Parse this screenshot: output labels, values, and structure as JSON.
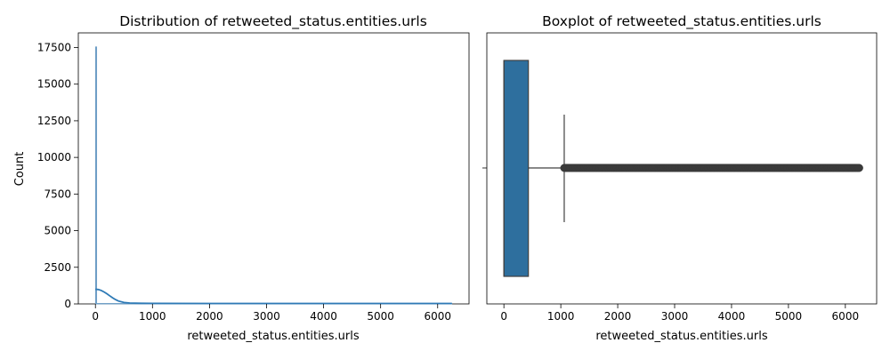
{
  "chart_data": [
    {
      "type": "histogram",
      "title": "Distribution of retweeted_status.entities.urls",
      "xlabel": "retweeted_status.entities.urls",
      "ylabel": "Count",
      "xlim": [
        -300,
        6550
      ],
      "ylim": [
        0,
        18500
      ],
      "x_ticks": [
        0,
        1000,
        2000,
        3000,
        4000,
        5000,
        6000
      ],
      "y_ticks": [
        0,
        2500,
        5000,
        7500,
        10000,
        12500,
        15000,
        17500
      ],
      "bars": [
        {
          "x0": 0,
          "x1": 12,
          "count": 17550
        },
        {
          "x0": 12,
          "x1": 6250,
          "count": 40
        }
      ],
      "kde": {
        "x": [
          0,
          50,
          100,
          150,
          200,
          250,
          300,
          350,
          400,
          500,
          600,
          800,
          1000,
          2000,
          3000,
          4000,
          5000,
          6000,
          6250
        ],
        "y": [
          1000,
          980,
          920,
          820,
          700,
          560,
          420,
          300,
          200,
          100,
          60,
          40,
          35,
          30,
          30,
          30,
          30,
          30,
          30
        ]
      },
      "colors": {
        "bar": "#6f9fc7",
        "kde": "#2e7ab6"
      },
      "grid": false
    },
    {
      "type": "boxplot",
      "title": "Boxplot of retweeted_status.entities.urls",
      "xlabel": "retweeted_status.entities.urls",
      "xlim": [
        -300,
        6550
      ],
      "x_ticks": [
        0,
        1000,
        2000,
        3000,
        4000,
        5000,
        6000
      ],
      "box": {
        "q1": 0,
        "q3": 430,
        "median": 0,
        "whisker_low": 0,
        "whisker_high": 1060
      },
      "outliers_range": [
        1060,
        6250
      ],
      "colors": {
        "box": "#2e6f9e",
        "line": "#404040"
      },
      "grid": false
    }
  ]
}
